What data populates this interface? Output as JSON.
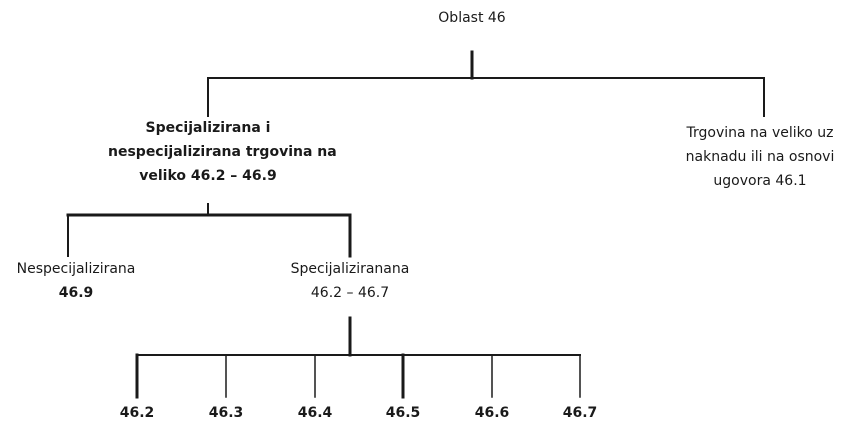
{
  "root": {
    "label": "Oblast 46"
  },
  "left_branch": {
    "lines": [
      "Specijalizirana i",
      "nespecijalizirana trgovina na",
      "veliko 46.2 – 46.9"
    ]
  },
  "right_branch": {
    "lines": [
      "Trgovina na veliko uz",
      "naknadu ili na osnovi",
      "ugovora 46.1"
    ]
  },
  "nonspecialized": {
    "label": "Nespecijalizirana",
    "code": "46.9"
  },
  "specialized": {
    "label": "Specijaliziranana",
    "code": "46.2 – 46.7"
  },
  "leaves": [
    "46.2",
    "46.3",
    "46.4",
    "46.5",
    "46.6",
    "46.7"
  ]
}
